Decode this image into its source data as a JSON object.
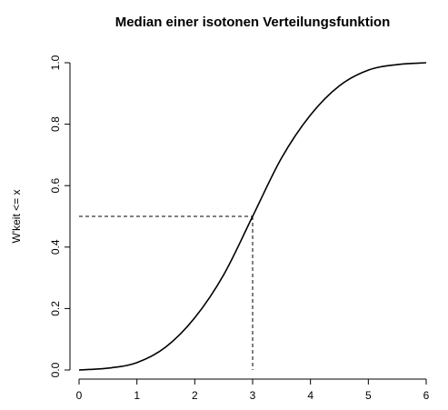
{
  "chart_data": {
    "type": "line",
    "title": "Median einer isotonen Verteilungsfunktion",
    "xlabel": "",
    "ylabel": "W'keit <= x",
    "xlim": [
      0,
      6
    ],
    "ylim": [
      0,
      1
    ],
    "x_ticks": [
      0,
      1,
      2,
      3,
      4,
      5,
      6
    ],
    "x_tick_labels": [
      "0",
      "1",
      "2",
      "3",
      "4",
      "5",
      "6"
    ],
    "y_ticks": [
      0,
      0.2,
      0.4,
      0.6,
      0.8,
      1
    ],
    "y_tick_labels": [
      "0.0",
      "0.2",
      "0.4",
      "0.6",
      "0.8",
      "1.0"
    ],
    "grid": false,
    "series": [
      {
        "x": [
          0,
          0.5,
          1,
          1.5,
          2,
          2.5,
          3,
          3.5,
          4,
          4.5,
          5,
          5.5,
          6
        ],
        "y": [
          0.0,
          0.006,
          0.024,
          0.075,
          0.17,
          0.31,
          0.5,
          0.69,
          0.83,
          0.925,
          0.976,
          0.994,
          1.0
        ]
      }
    ],
    "median_marker": {
      "x": 3,
      "y": 0.5,
      "style": "dashed"
    }
  }
}
